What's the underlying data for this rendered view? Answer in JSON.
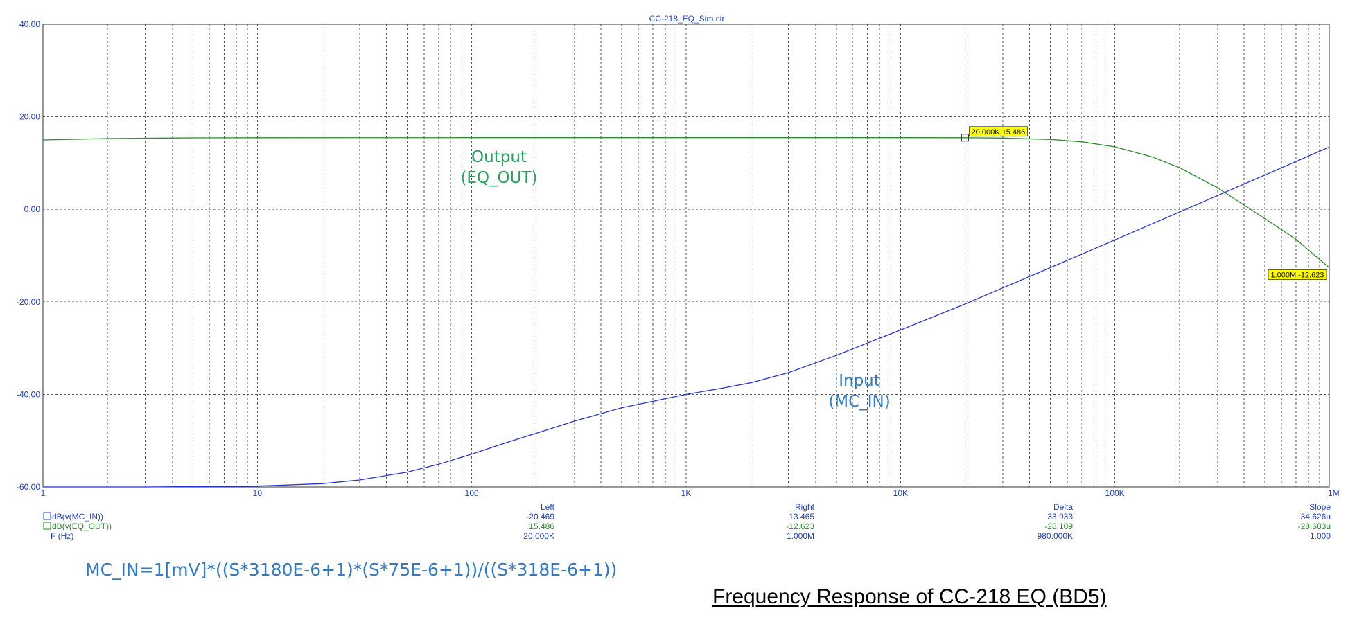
{
  "colors": {
    "axis_text": "#1f3fd6",
    "grid": "#555555",
    "input_curve": "#2233dd",
    "output_curve": "#2e8b2e",
    "input_label": "#2f7ac9",
    "output_label": "#22a35a",
    "marker_fill": "#ffff00",
    "readout_output": "#2a8a2a"
  },
  "chart_data": {
    "type": "line",
    "title": "CC-218_EQ_Sim.cir",
    "xscale": "log",
    "xlim": [
      1,
      1000000
    ],
    "ylim": [
      -60,
      40
    ],
    "grid": true,
    "xticks": [
      {
        "v": 1,
        "label": "1"
      },
      {
        "v": 10,
        "label": "10"
      },
      {
        "v": 100,
        "label": "100"
      },
      {
        "v": 1000,
        "label": "1K"
      },
      {
        "v": 10000,
        "label": "10K"
      },
      {
        "v": 100000,
        "label": "100K"
      },
      {
        "v": 1000000,
        "label": "1M"
      }
    ],
    "yticks": [
      {
        "v": 40,
        "label": "40.00"
      },
      {
        "v": 20,
        "label": "20.00"
      },
      {
        "v": 0,
        "label": "0.00"
      },
      {
        "v": -20,
        "label": "-20.00"
      },
      {
        "v": -40,
        "label": "-40.00"
      },
      {
        "v": -60,
        "label": "-60.00"
      }
    ],
    "series": [
      {
        "name": "dB(v(MC_IN))",
        "color": "#2233dd",
        "x": [
          1,
          3,
          10,
          20,
          30,
          50,
          70,
          100,
          150,
          200,
          300,
          500,
          700,
          1000,
          1500,
          2000,
          3000,
          5000,
          7000,
          10000,
          20000,
          50000,
          100000,
          200000,
          500000,
          1000000
        ],
        "y": [
          -60,
          -60,
          -59.8,
          -59.3,
          -58.5,
          -56.8,
          -55.1,
          -52.9,
          -50.2,
          -48.4,
          -45.8,
          -42.9,
          -41.5,
          -40.0,
          -38.6,
          -37.5,
          -35.3,
          -31.6,
          -28.9,
          -26.1,
          -20.47,
          -12.6,
          -6.6,
          -0.6,
          7.4,
          13.465
        ]
      },
      {
        "name": "dB(v(EQ_OUT))",
        "color": "#2e8b2e",
        "x": [
          1,
          2,
          5,
          10,
          100,
          1000,
          10000,
          20000,
          30000,
          50000,
          70000,
          100000,
          150000,
          200000,
          300000,
          500000,
          700000,
          1000000
        ],
        "y": [
          15.0,
          15.3,
          15.45,
          15.48,
          15.49,
          15.49,
          15.49,
          15.486,
          15.4,
          15.1,
          14.6,
          13.5,
          11.3,
          9.0,
          4.7,
          -2.0,
          -6.5,
          -12.623
        ]
      }
    ],
    "curve_labels": {
      "output": [
        "Output",
        "(EQ_OUT)"
      ],
      "input": [
        "Input",
        "(MC_IN)"
      ]
    },
    "markers": [
      {
        "x": 20000,
        "y": 15.486,
        "label": "20.000K,15.486"
      },
      {
        "x": 1000000,
        "y": -12.623,
        "label": "1.000M,-12.623"
      }
    ],
    "readout": {
      "headers": [
        "Left",
        "Right",
        "Delta",
        "Slope"
      ],
      "rows": [
        {
          "name": "dB(v(MC_IN))",
          "values": [
            "-20.469",
            "13.465",
            "33.933",
            "34.626u"
          ]
        },
        {
          "name": "dB(v(EQ_OUT))",
          "values": [
            "15.486",
            "-12.623",
            "-28.109",
            "-28.683u"
          ]
        },
        {
          "name": "F (Hz)",
          "values": [
            "20.000K",
            "1.000M",
            "980.000K",
            "1.000"
          ]
        }
      ]
    }
  },
  "formula": "MC_IN=1[mV]*((S*3180E-6+1)*(S*75E-6+1))/((S*318E-6+1))",
  "caption": "Frequency  Response of CC-218 EQ (BD5)"
}
